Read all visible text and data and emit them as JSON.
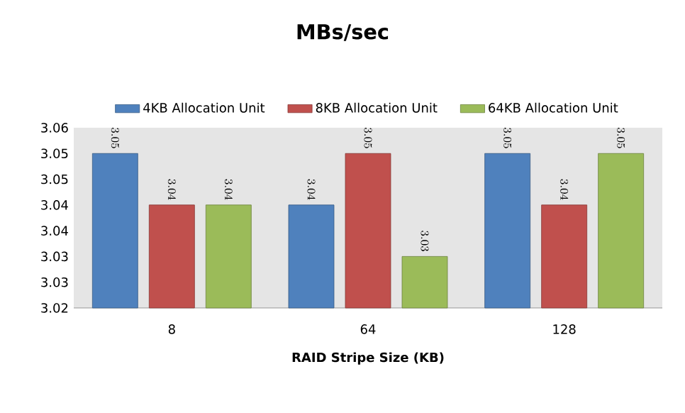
{
  "chart_data": {
    "type": "bar",
    "title": "MBs/sec",
    "xlabel": "RAID Stripe Size (KB)",
    "categories": [
      "8",
      "64",
      "128"
    ],
    "series": [
      {
        "name": "4KB Allocation Unit",
        "color": "#4f81bd",
        "values": [
          3.05,
          3.04,
          3.05
        ]
      },
      {
        "name": "8KB Allocation Unit",
        "color": "#c0504d",
        "values": [
          3.04,
          3.05,
          3.04
        ]
      },
      {
        "name": "64KB Allocation Unit",
        "color": "#9bbb59",
        "values": [
          3.04,
          3.03,
          3.05
        ]
      }
    ],
    "ylim": [
      3.02,
      3.055
    ],
    "yticks": [
      {
        "value": 3.02,
        "label": "3.02"
      },
      {
        "value": 3.025,
        "label": "3.03"
      },
      {
        "value": 3.03,
        "label": "3.03"
      },
      {
        "value": 3.035,
        "label": "3.04"
      },
      {
        "value": 3.04,
        "label": "3.04"
      },
      {
        "value": 3.045,
        "label": "3.05"
      },
      {
        "value": 3.05,
        "label": "3.05"
      },
      {
        "value": 3.055,
        "label": "3.06"
      }
    ],
    "data_labels": true,
    "legend": "top",
    "grid": false
  }
}
